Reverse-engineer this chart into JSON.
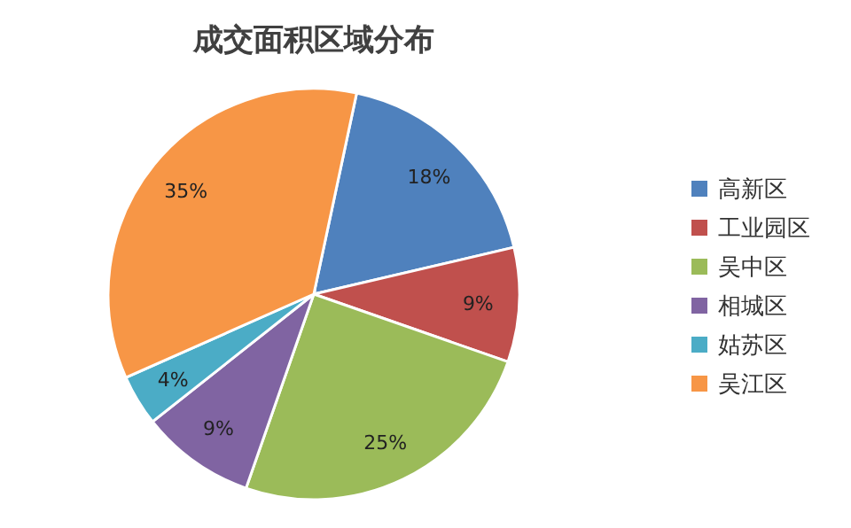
{
  "chart_data": {
    "type": "pie",
    "title": "成交面积区域分布",
    "categories": [
      "高新区",
      "工业园区",
      "吴中区",
      "相城区",
      "姑苏区",
      "吴江区"
    ],
    "values": [
      18,
      9,
      25,
      9,
      4,
      35
    ],
    "colors": [
      "#4f81bd",
      "#c0504d",
      "#9bbb59",
      "#8064a2",
      "#4bacc6",
      "#f79646"
    ],
    "value_labels": [
      "18%",
      "9%",
      "25%",
      "9%",
      "4%",
      "35%"
    ],
    "legend": "right"
  }
}
